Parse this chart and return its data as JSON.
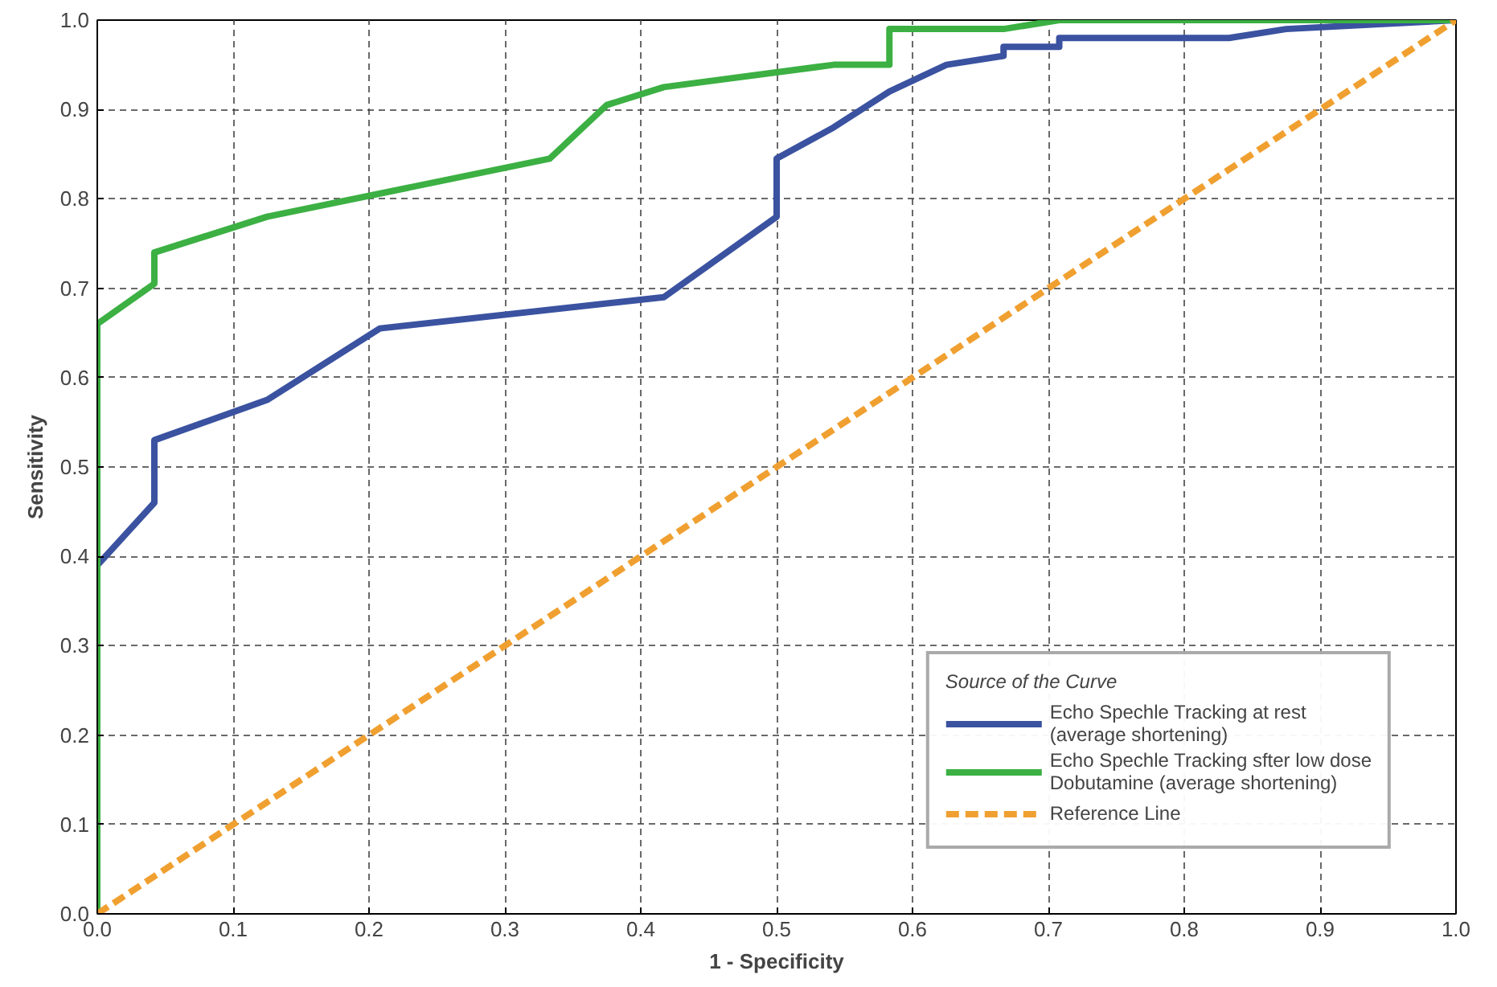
{
  "chart_data": {
    "type": "line",
    "xlabel": "1 - Specificity",
    "ylabel": "Sensitivity",
    "legend_title": "Source of the Curve",
    "legend": "bottom right",
    "grid": true,
    "line_style": "solid",
    "marker": "none",
    "xlim": [
      0,
      1
    ],
    "ylim": [
      0,
      1
    ],
    "xticks": [
      {
        "value": 0,
        "label": "0.0"
      },
      {
        "value": 0.1,
        "label": "0.1"
      },
      {
        "value": 0.2,
        "label": "0.2"
      },
      {
        "value": 0.3,
        "label": "0.3"
      },
      {
        "value": 0.4,
        "label": "0.4"
      },
      {
        "value": 0.5,
        "label": "0.5"
      },
      {
        "value": 0.6,
        "label": "0.6"
      },
      {
        "value": 0.7,
        "label": "0.7"
      },
      {
        "value": 0.8,
        "label": "0.8"
      },
      {
        "value": 0.9,
        "label": "0.9"
      },
      {
        "value": 1,
        "label": "1.0"
      }
    ],
    "yticks": [
      {
        "value": 0,
        "label": "0.0"
      },
      {
        "value": 0.1,
        "label": "0.1"
      },
      {
        "value": 0.2,
        "label": "0.2"
      },
      {
        "value": 0.3,
        "label": "0.3"
      },
      {
        "value": 0.4,
        "label": "0.4"
      },
      {
        "value": 0.5,
        "label": "0.5"
      },
      {
        "value": 0.6,
        "label": "0.6"
      },
      {
        "value": 0.7,
        "label": "0.7"
      },
      {
        "value": 0.8,
        "label": "0.8"
      },
      {
        "value": 0.9,
        "label": "0.9"
      },
      {
        "value": 1,
        "label": "1.0"
      }
    ],
    "series": [
      {
        "name": "Echo Spechle Tracking at rest\n(average shortening)",
        "color": "#3a52a0",
        "x": [
          0,
          0,
          0.042,
          0.042,
          0.125,
          0.208,
          0.417,
          0.5,
          0.5,
          0.542,
          0.583,
          0.625,
          0.667,
          0.667,
          0.708,
          0.708,
          0.833,
          0.875,
          1
        ],
        "values": [
          0,
          0.39,
          0.46,
          0.53,
          0.575,
          0.655,
          0.69,
          0.78,
          0.845,
          0.88,
          0.92,
          0.95,
          0.96,
          0.97,
          0.97,
          0.98,
          0.98,
          0.99,
          1
        ]
      },
      {
        "name": "Echo Spechle Tracking sfter low dose\nDobutamine (average shortening)",
        "color": "#3cb043",
        "x": [
          0,
          0,
          0.042,
          0.042,
          0.125,
          0.333,
          0.375,
          0.417,
          0.542,
          0.583,
          0.583,
          0.667,
          0.708,
          1
        ],
        "values": [
          0,
          0.66,
          0.705,
          0.74,
          0.78,
          0.845,
          0.905,
          0.925,
          0.95,
          0.95,
          0.99,
          0.99,
          1,
          1
        ]
      },
      {
        "name": "Reference Line",
        "color": "#f0a030",
        "line_style": "dashed",
        "x": [
          0,
          1
        ],
        "values": [
          0,
          1
        ]
      }
    ]
  }
}
